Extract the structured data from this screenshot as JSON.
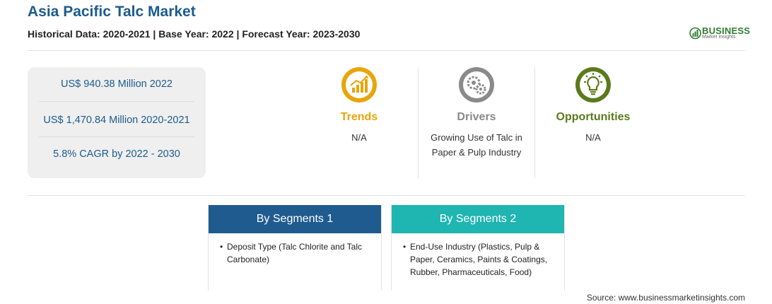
{
  "header": {
    "title": "Asia Pacific Talc Market",
    "subtitle": "Historical Data: 2020-2021 | Base Year: 2022 | Forecast Year: 2023-2030"
  },
  "logo": {
    "word": "BUSINESS",
    "sub": "Market Insights"
  },
  "stats": [
    "US$ 940.38 Million 2022",
    "US$ 1,470.84 Million 2020-2021",
    "5.8% CAGR by 2022 - 2030"
  ],
  "features": {
    "trends": {
      "title": "Trends",
      "text": "N/A",
      "icon": "trend-chart-icon",
      "color": "#e8a50b"
    },
    "drivers": {
      "title": "Drivers",
      "text": "Growing Use of Talc in Paper & Pulp Industry",
      "icon": "gears-icon",
      "color": "#8a8a8a"
    },
    "opportunities": {
      "title": "Opportunities",
      "text": "N/A",
      "icon": "lightbulb-icon",
      "color": "#5a7a1c"
    }
  },
  "segments": [
    {
      "title": "By Segments 1",
      "items": [
        "Deposit Type (Talc Chlorite and Talc Carbonate)"
      ],
      "color": "#1f5b8f"
    },
    {
      "title": "By Segments 2",
      "items": [
        "End-Use Industry (Plastics, Pulp & Paper, Ceramics, Paints & Coatings, Rubber, Pharmaceuticals, Food)"
      ],
      "color": "#1fb5b1"
    }
  ],
  "source": "Source: www.businessmarketinsights.com"
}
